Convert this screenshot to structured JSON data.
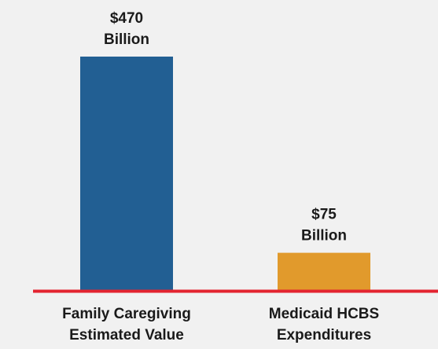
{
  "chart_data": {
    "type": "bar",
    "categories": [
      [
        "Family Caregiving",
        "Estimated Value"
      ],
      [
        "Medicaid HCBS",
        "Expenditures"
      ]
    ],
    "values": [
      470,
      75
    ],
    "value_labels": [
      [
        "$470",
        "Billion"
      ],
      [
        "$75",
        "Billion"
      ]
    ],
    "unit": "Billion",
    "bar_colors": [
      "#225f93",
      "#e19a2c"
    ],
    "baseline_color": "#e32430",
    "title": "",
    "xlabel": "",
    "ylabel": "",
    "ylim": [
      0,
      470
    ],
    "grid": false,
    "legend": "none"
  }
}
